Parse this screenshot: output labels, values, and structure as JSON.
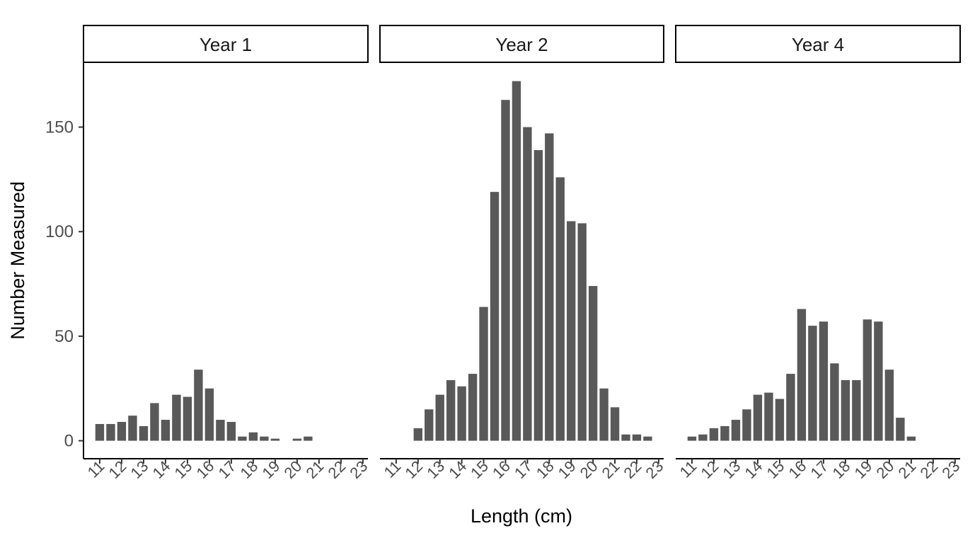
{
  "chart_data": {
    "type": "bar",
    "ylabel": "Number Measured",
    "xlabel": "Length (cm)",
    "color": "#595959",
    "bar_width": 0.4,
    "ylim": [
      -8.6,
      181
    ],
    "yticks": [
      0,
      50,
      100,
      150
    ],
    "xlim": [
      10.26,
      23.23
    ],
    "xticks": [
      11,
      12,
      13,
      14,
      15,
      16,
      17,
      18,
      19,
      20,
      21,
      22,
      23
    ],
    "facets": [
      {
        "title": "Year 1",
        "x": [
          11,
          11.5,
          12,
          12.5,
          13,
          13.5,
          14,
          14.5,
          15,
          15.5,
          16,
          16.5,
          17,
          17.5,
          18,
          18.5,
          19,
          20,
          20.5
        ],
        "values": [
          8,
          8,
          9,
          12,
          7,
          18,
          10,
          22,
          21,
          34,
          25,
          10,
          9,
          2,
          4,
          2,
          1,
          1,
          2
        ]
      },
      {
        "title": "Year 2",
        "x": [
          12,
          12.5,
          13,
          13.5,
          14,
          14.5,
          15,
          15.5,
          16,
          16.5,
          17,
          17.5,
          18,
          18.5,
          19,
          19.5,
          20,
          20.5,
          21,
          21.5,
          22,
          22.5
        ],
        "values": [
          6,
          15,
          22,
          29,
          26,
          32,
          64,
          119,
          163,
          172,
          150,
          139,
          147,
          126,
          105,
          104,
          74,
          25,
          16,
          3,
          3,
          2
        ]
      },
      {
        "title": "Year 4",
        "x": [
          11,
          11.5,
          12,
          12.5,
          13,
          13.5,
          14,
          14.5,
          15,
          15.5,
          16,
          16.5,
          17,
          17.5,
          18,
          18.5,
          19,
          19.5,
          20,
          20.5,
          21
        ],
        "values": [
          2,
          3,
          6,
          7,
          10,
          15,
          22,
          23,
          20,
          32,
          63,
          55,
          57,
          37,
          29,
          29,
          58,
          57,
          34,
          11,
          2
        ]
      }
    ]
  }
}
